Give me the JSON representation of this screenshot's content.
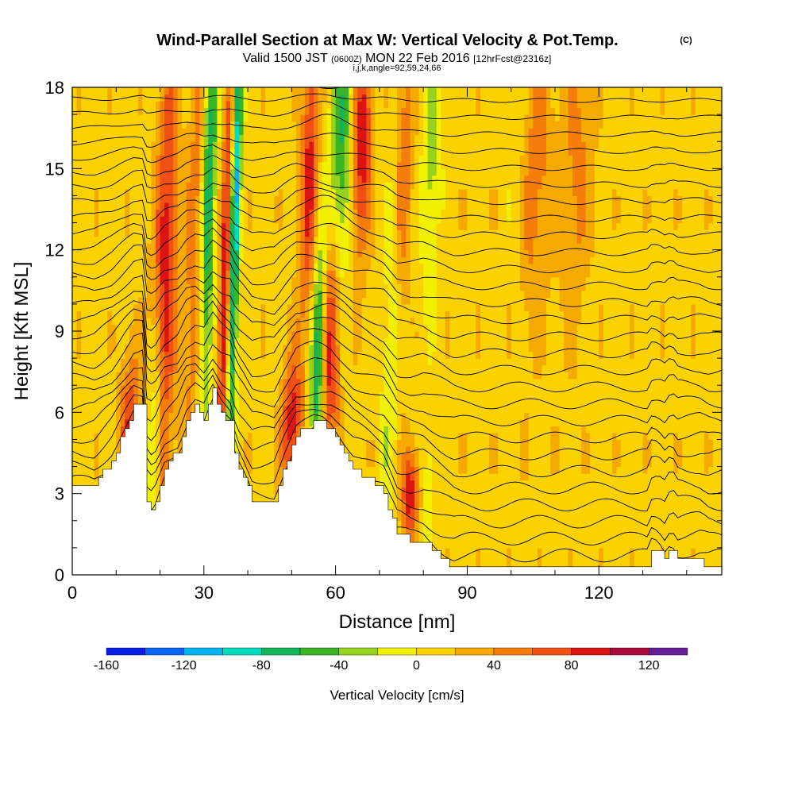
{
  "chart_data": {
    "type": "heatmap",
    "title": "Wind-Parallel Section at Max W: Vertical Velocity & Pot.Temp.",
    "title_mark": "(C)",
    "subtitle": {
      "valid_prefix": "Valid 1500 JST",
      "utc": "(0600Z)",
      "date": "MON 22 Feb 2016",
      "forecast": "[12hrFcst@2316z]"
    },
    "indices": "i,j,k,angle=92,59,24,66",
    "xlabel": "Distance [nm]",
    "ylabel": "Height [Kft MSL]",
    "xlim": [
      0,
      148
    ],
    "ylim": [
      0,
      18
    ],
    "x_ticks": [
      "0",
      "30",
      "60",
      "90",
      "120"
    ],
    "y_ticks": [
      "0",
      "3",
      "6",
      "9",
      "12",
      "15",
      "18"
    ],
    "colorbar": {
      "label": "Vertical Velocity [cm/s]",
      "range": [
        -160,
        140
      ],
      "step": 20,
      "tick_labels": [
        "-160",
        "-120",
        "-80",
        "-40",
        "0",
        "40",
        "80",
        "120"
      ],
      "colors": [
        "#0a1ee6",
        "#0a64f5",
        "#00b4f0",
        "#00dcbe",
        "#14b45a",
        "#3cb428",
        "#96d21e",
        "#f0f000",
        "#fad200",
        "#f5aa00",
        "#f57d0a",
        "#f05014",
        "#dc1414",
        "#aa0a3c",
        "#641e96"
      ]
    },
    "terrain_kft": [
      [
        0,
        3.3
      ],
      [
        5,
        3.3
      ],
      [
        9,
        4.2
      ],
      [
        12,
        5.4
      ],
      [
        14,
        6.2
      ],
      [
        16,
        6.2
      ],
      [
        16.5,
        3.2
      ],
      [
        17.5,
        2.4
      ],
      [
        19,
        2.8
      ],
      [
        21,
        4.0
      ],
      [
        24,
        4.6
      ],
      [
        26,
        5.8
      ],
      [
        28,
        6.2
      ],
      [
        30,
        5.8
      ],
      [
        32,
        6.8
      ],
      [
        34,
        6.0
      ],
      [
        36,
        5.6
      ],
      [
        37,
        4.6
      ],
      [
        38,
        4.0
      ],
      [
        39,
        3.6
      ],
      [
        41,
        2.7
      ],
      [
        46,
        2.7
      ],
      [
        48,
        3.8
      ],
      [
        51,
        5.2
      ],
      [
        55,
        5.6
      ],
      [
        57,
        5.6
      ],
      [
        59,
        5.4
      ],
      [
        62,
        4.6
      ],
      [
        64,
        4.0
      ],
      [
        67,
        3.6
      ],
      [
        71,
        3.0
      ],
      [
        74,
        1.5
      ],
      [
        77,
        1.3
      ],
      [
        80,
        1.3
      ],
      [
        84,
        0.7
      ],
      [
        87,
        0.3
      ],
      [
        100,
        0.3
      ],
      [
        110,
        0.3
      ],
      [
        120,
        0.3
      ],
      [
        131,
        0.3
      ],
      [
        132,
        0.9
      ],
      [
        133.5,
        0.9
      ],
      [
        135,
        0.5
      ],
      [
        136,
        0.9
      ],
      [
        137,
        0.9
      ],
      [
        138,
        0.5
      ],
      [
        143,
        0.5
      ],
      [
        145,
        0.3
      ],
      [
        148,
        0.3
      ]
    ],
    "updrafts": [
      {
        "x": 21,
        "z": 10,
        "amp": 85,
        "sx": 1.8,
        "sz": 7
      },
      {
        "x": 28,
        "z": 12,
        "amp": 45,
        "sx": 1.5,
        "sz": 7
      },
      {
        "x": 35,
        "z": 11,
        "amp": 95,
        "sx": 1.0,
        "sz": 6
      },
      {
        "x": 13,
        "z": 5.5,
        "amp": 65,
        "sx": 1.6,
        "sz": 2
      },
      {
        "x": 59,
        "z": 9,
        "amp": 95,
        "sx": 1.6,
        "sz": 3.5
      },
      {
        "x": 50,
        "z": 5.6,
        "amp": 80,
        "sx": 1.6,
        "sz": 1.8
      },
      {
        "x": 66,
        "z": 16,
        "amp": 85,
        "sx": 1.6,
        "sz": 3
      },
      {
        "x": 54,
        "z": 15,
        "amp": 75,
        "sx": 1.4,
        "sz": 4
      },
      {
        "x": 77,
        "z": 3,
        "amp": 85,
        "sx": 1.3,
        "sz": 1.2
      },
      {
        "x": 75,
        "z": 15,
        "amp": 55,
        "sx": 1.6,
        "sz": 5
      },
      {
        "x": 105,
        "z": 15,
        "amp": 45,
        "sx": 3,
        "sz": 4
      },
      {
        "x": 115,
        "z": 15,
        "amp": 35,
        "sx": 2.5,
        "sz": 4
      }
    ],
    "downdrafts": [
      {
        "x": 19,
        "z": 5,
        "amp": -75,
        "sx": 1.3,
        "sz": 3
      },
      {
        "x": 31,
        "z": 14,
        "amp": -90,
        "sx": 1.2,
        "sz": 6
      },
      {
        "x": 37,
        "z": 13,
        "amp": -130,
        "sx": 0.8,
        "sz": 7
      },
      {
        "x": 56,
        "z": 8,
        "amp": -105,
        "sx": 1.1,
        "sz": 3
      },
      {
        "x": 61,
        "z": 15,
        "amp": -85,
        "sx": 1.8,
        "sz": 4
      },
      {
        "x": 73,
        "z": 10,
        "amp": -45,
        "sx": 1.4,
        "sz": 6
      },
      {
        "x": 82,
        "z": 16,
        "amp": -45,
        "sx": 1.5,
        "sz": 4
      },
      {
        "x": 81,
        "z": 3,
        "amp": -30,
        "sx": 0.6,
        "sz": 2
      },
      {
        "x": 102,
        "z": 16,
        "amp": -25,
        "sx": 2,
        "sz": 4
      }
    ],
    "theta_contours": {
      "count": 30,
      "level_spacing_kft": 0.5,
      "base_kft": 0.5
    }
  }
}
